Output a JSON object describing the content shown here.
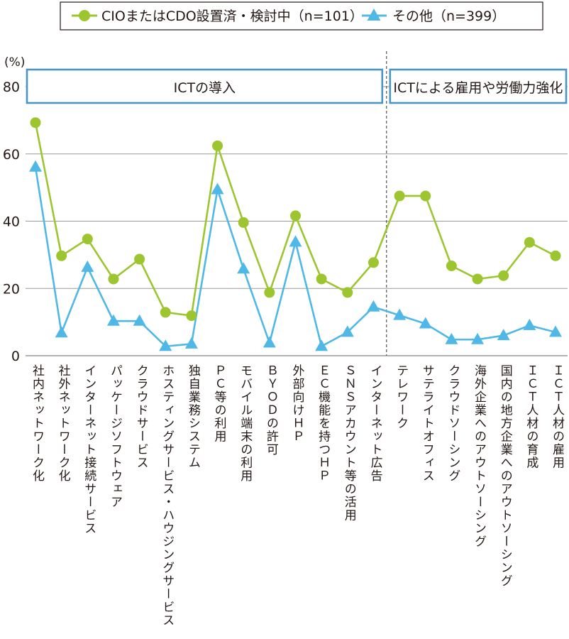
{
  "chart_data": {
    "type": "line",
    "y_unit_label": "(%)",
    "ylim": [
      0,
      80
    ],
    "yticks": [
      0,
      20,
      40,
      60,
      80
    ],
    "grid": "horizontal",
    "legend_position": "top",
    "groups": [
      {
        "label": "ICTの導入",
        "from_index": 0,
        "to_index": 13
      },
      {
        "label": "ICTによる雇用や労働力強化",
        "from_index": 14,
        "to_index": 20
      }
    ],
    "categories": [
      "社内ネットワーク化",
      "社外ネットワーク化",
      "インターネット接続サービス",
      "パッケージソフトウェア",
      "クラウドサービス",
      "ホスティングサービス・ハウジングサービス",
      "独自業務システム",
      "ＰＣ等の利用",
      "モバイル端末の利用",
      "ＢＹＯＤの許可",
      "外部向けＨＰ",
      "ＥＣ機能を持つＨＰ",
      "ＳＮＳアカウント等の活用",
      "インターネット広告",
      "テレワーク",
      "サテライトオフィス",
      "クラウドソーシング",
      "海外企業へのアウトソーシング",
      "国内の地方企業へのアウトソーシング",
      "ＩＣＴ人材の育成",
      "ＩＣＴ人材の雇用"
    ],
    "series": [
      {
        "name": "CIOまたはCDO設置済・検討中（n=101）",
        "color": "#9dc52f",
        "marker": "circle",
        "values": [
          69.3,
          29.7,
          34.7,
          22.8,
          28.7,
          12.9,
          11.9,
          62.4,
          39.6,
          18.8,
          41.6,
          22.8,
          18.8,
          27.7,
          47.5,
          47.5,
          26.7,
          22.8,
          23.8,
          33.7,
          29.7
        ]
      },
      {
        "name": "その他（n=399）",
        "color": "#4fb8e6",
        "marker": "triangle",
        "values": [
          56.1,
          6.8,
          26.3,
          10.3,
          10.3,
          2.8,
          3.5,
          49.4,
          25.8,
          3.8,
          33.8,
          2.8,
          7.0,
          14.5,
          12.0,
          9.5,
          4.8,
          4.8,
          6.0,
          9.0,
          7.0
        ]
      }
    ]
  }
}
